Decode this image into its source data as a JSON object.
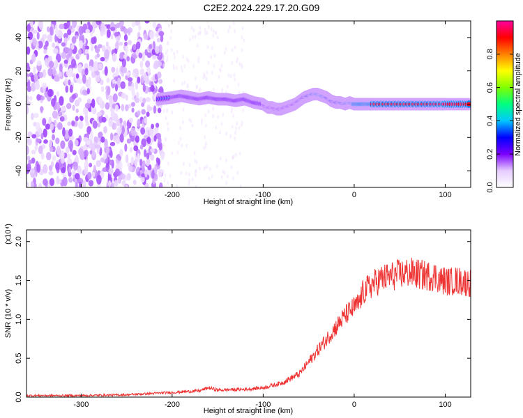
{
  "figure": {
    "title": "C2E2.2024.229.17.20.G09"
  },
  "chart_data": [
    {
      "type": "heatmap",
      "title": "C2E2.2024.229.17.20.G09",
      "xlabel": "Height of straight line (km)",
      "ylabel": "Frequency (Hz)",
      "xlim": [
        -360,
        128
      ],
      "ylim": [
        -50,
        50
      ],
      "xticks": [
        -300,
        -200,
        -100,
        0,
        100
      ],
      "yticks": [
        -40,
        -20,
        0,
        20,
        40
      ],
      "colorbar": {
        "label": "Normalized spectral amplitude",
        "range": [
          0,
          1
        ],
        "ticks": [
          0.0,
          0.2,
          0.4,
          0.6,
          0.8
        ],
        "colormap": [
          "#ffffff",
          "#e6ccff",
          "#7b00ff",
          "#0000ff",
          "#00c8ff",
          "#00ff80",
          "#80ff00",
          "#ffff00",
          "#ff8000",
          "#ff0000",
          "#ff00a0"
        ]
      },
      "ridge": {
        "x": [
          -215,
          -200,
          -190,
          -180,
          -170,
          -160,
          -150,
          -140,
          -130,
          -120,
          -110,
          -100,
          -95,
          -90,
          -85,
          -80,
          -75,
          -70,
          -65,
          -60,
          -55,
          -50,
          -45,
          -40,
          -35,
          -30,
          -25,
          -20,
          -15,
          -10,
          -5,
          0,
          10,
          20,
          40,
          60,
          80,
          100,
          128
        ],
        "y": [
          3,
          4,
          5,
          4,
          3,
          4,
          3,
          3,
          2,
          3,
          1,
          0,
          -2,
          -2,
          -3,
          -3,
          -2,
          -1,
          0,
          2,
          4,
          5,
          6,
          6,
          5,
          4,
          2,
          1,
          1,
          0,
          1,
          0,
          0,
          0,
          0,
          0,
          0,
          0,
          0
        ],
        "amplitude": [
          0.35,
          0.4,
          0.4,
          0.38,
          0.35,
          0.35,
          0.38,
          0.35,
          0.35,
          0.4,
          0.35,
          0.35,
          0.35,
          0.4,
          0.4,
          0.45,
          0.45,
          0.45,
          0.5,
          0.55,
          0.6,
          0.75,
          0.85,
          0.9,
          0.9,
          0.75,
          0.7,
          0.75,
          0.8,
          0.85,
          0.9,
          0.92,
          0.92,
          0.92,
          0.92,
          0.92,
          0.92,
          0.95,
          0.92
        ]
      },
      "noise_region_x": [
        -360,
        -210
      ]
    },
    {
      "type": "line",
      "xlabel": "Height of straight line (km)",
      "ylabel": "SNR (10 * v/v)",
      "y_multiplier": "(x10⁴)",
      "xlim": [
        -360,
        128
      ],
      "ylim": [
        0,
        2.15
      ],
      "xticks": [
        -300,
        -200,
        -100,
        0,
        100
      ],
      "yticks": [
        0.0,
        0.5,
        1.0,
        1.5,
        2.0
      ],
      "color": "#ee3333",
      "x": [
        -360,
        -300,
        -250,
        -200,
        -170,
        -160,
        -150,
        -120,
        -100,
        -80,
        -60,
        -50,
        -40,
        -30,
        -20,
        -10,
        0,
        5,
        10,
        20,
        30,
        40,
        50,
        60,
        70,
        80,
        90,
        95,
        100,
        105,
        110,
        128
      ],
      "y": [
        0.02,
        0.02,
        0.03,
        0.06,
        0.08,
        0.12,
        0.09,
        0.1,
        0.12,
        0.18,
        0.3,
        0.45,
        0.6,
        0.75,
        0.9,
        1.05,
        1.15,
        1.2,
        1.35,
        1.45,
        1.52,
        1.55,
        1.58,
        1.6,
        1.58,
        1.56,
        1.55,
        1.5,
        1.5,
        1.48,
        1.5,
        1.47
      ]
    }
  ]
}
